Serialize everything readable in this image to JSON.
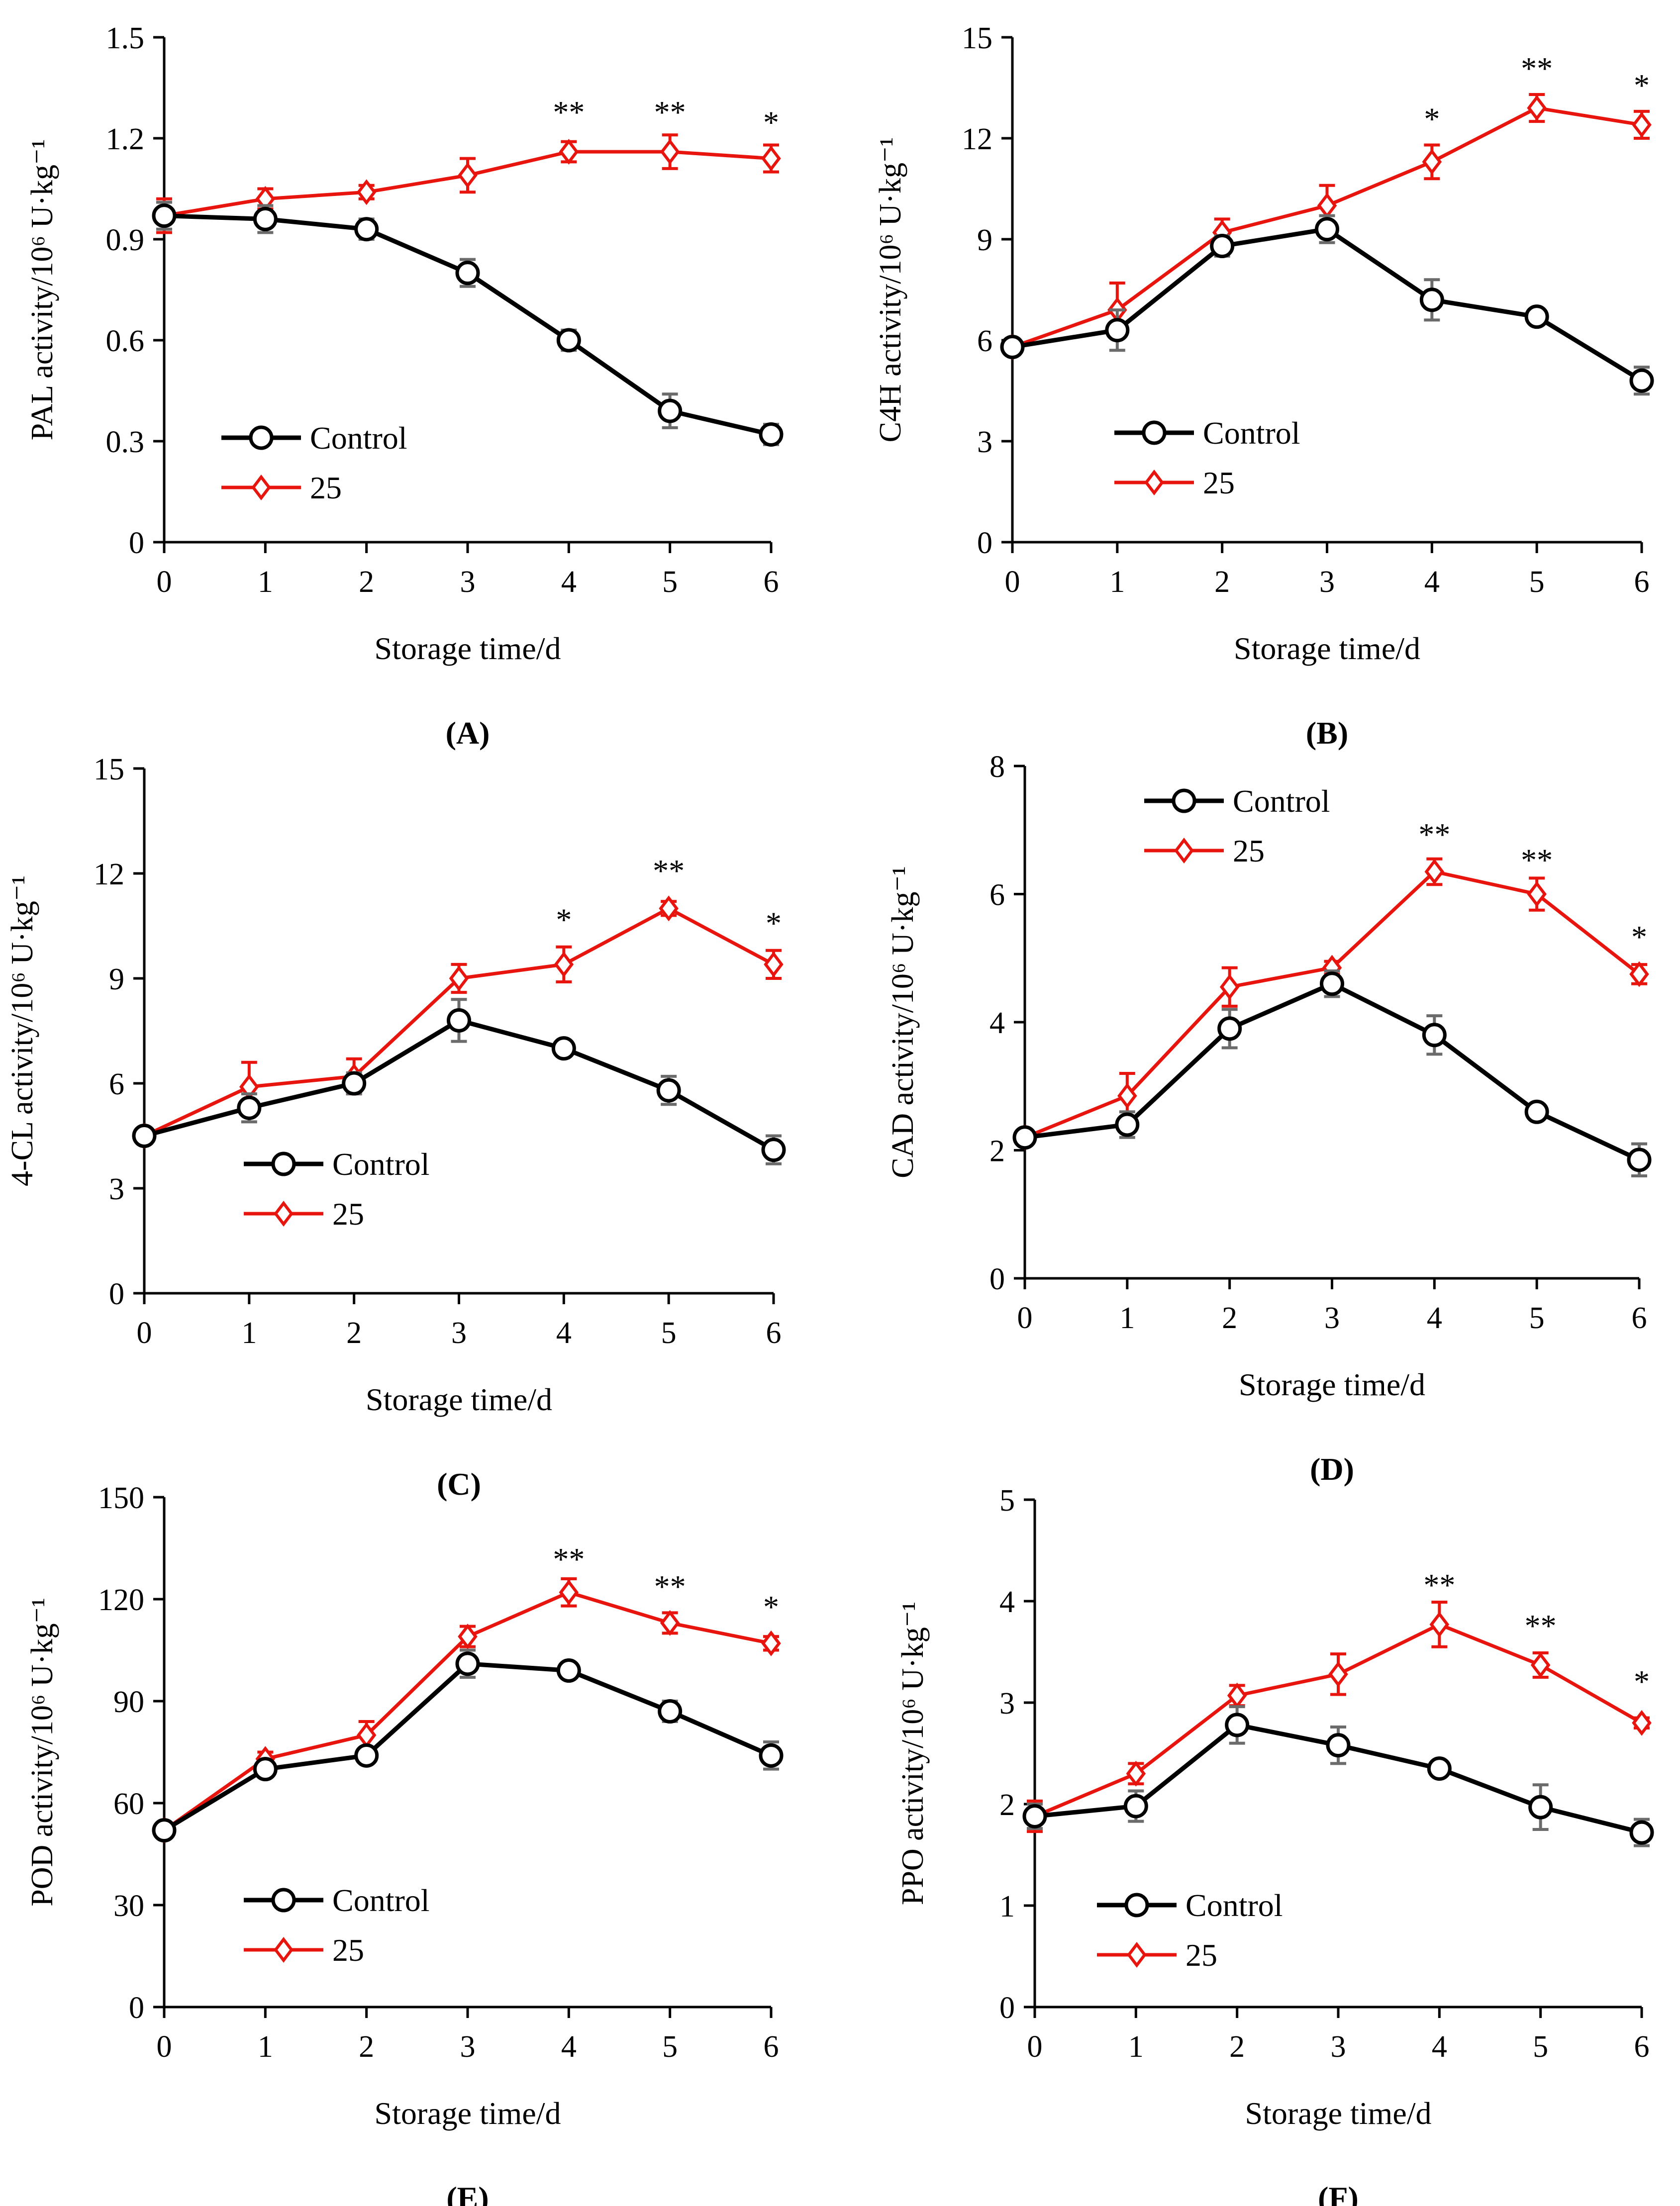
{
  "figure": {
    "series_names": [
      "Control",
      "25"
    ],
    "colors": {
      "control": "#000000",
      "treatment": "#e8140e",
      "errorbar": "#6b6b6b"
    }
  },
  "chart_data": [
    {
      "panel": "A",
      "panel_label": "(A)",
      "type": "line",
      "title": "",
      "xlabel": "Storage time/d",
      "ylabel": "PAL activity/10⁶ U·kg⁻¹",
      "ylim": [
        0,
        1.5
      ],
      "yticks": [
        0,
        0.3,
        0.6,
        0.9,
        1.2,
        1.5
      ],
      "ytick_labels": [
        "0",
        "0.3",
        "0.6",
        "0.9",
        "1.2",
        "1.5"
      ],
      "x": [
        0,
        1,
        2,
        3,
        4,
        5,
        6
      ],
      "xtick_labels": [
        "0",
        "1",
        "2",
        "3",
        "4",
        "5",
        "6"
      ],
      "legend_position": "bottom-left",
      "series": [
        {
          "name": "Control",
          "marker": "circle",
          "values": [
            0.97,
            0.96,
            0.93,
            0.8,
            0.6,
            0.39,
            0.32
          ],
          "errors": [
            0.04,
            0.04,
            0.03,
            0.04,
            0.03,
            0.05,
            0.03
          ]
        },
        {
          "name": "25",
          "marker": "diamond",
          "values": [
            0.97,
            1.02,
            1.04,
            1.09,
            1.16,
            1.16,
            1.14
          ],
          "errors": [
            0.05,
            0.03,
            0.02,
            0.05,
            0.03,
            0.05,
            0.04
          ]
        }
      ],
      "significance": [
        {
          "x": 4,
          "label": "**",
          "value": 1.29
        },
        {
          "x": 5,
          "label": "**",
          "value": 1.29
        },
        {
          "x": 6,
          "label": "*",
          "value": 1.26
        }
      ]
    },
    {
      "panel": "B",
      "panel_label": "(B)",
      "type": "line",
      "title": "",
      "xlabel": "Storage time/d",
      "ylabel": "C4H activity/10⁶ U·kg⁻¹",
      "ylim": [
        0,
        15
      ],
      "yticks": [
        0,
        3,
        6,
        9,
        12,
        15
      ],
      "ytick_labels": [
        "0",
        "3",
        "6",
        "9",
        "12",
        "15"
      ],
      "x": [
        0,
        1,
        2,
        3,
        4,
        5,
        6
      ],
      "xtick_labels": [
        "0",
        "1",
        "2",
        "3",
        "4",
        "5",
        "6"
      ],
      "legend_position": "bottom-center",
      "series": [
        {
          "name": "Control",
          "marker": "circle",
          "values": [
            5.8,
            6.3,
            8.8,
            9.3,
            7.2,
            6.7,
            4.8
          ],
          "errors": [
            0.2,
            0.6,
            0.3,
            0.4,
            0.6,
            0.2,
            0.4
          ]
        },
        {
          "name": "25",
          "marker": "diamond",
          "values": [
            5.8,
            6.9,
            9.2,
            10.0,
            11.3,
            12.9,
            12.4
          ],
          "errors": [
            0.2,
            0.8,
            0.4,
            0.6,
            0.5,
            0.4,
            0.4
          ]
        }
      ],
      "significance": [
        {
          "x": 4,
          "label": "*",
          "value": 12.7
        },
        {
          "x": 5,
          "label": "**",
          "value": 14.2
        },
        {
          "x": 6,
          "label": "*",
          "value": 13.7
        }
      ]
    },
    {
      "panel": "C",
      "panel_label": "(C)",
      "type": "line",
      "title": "",
      "xlabel": "Storage time/d",
      "ylabel": "4-CL activity/10⁶ U·kg⁻¹",
      "ylim": [
        0,
        15
      ],
      "yticks": [
        0,
        3,
        6,
        9,
        12,
        15
      ],
      "ytick_labels": [
        "0",
        "3",
        "6",
        "9",
        "12",
        "15"
      ],
      "x": [
        0,
        1,
        2,
        3,
        4,
        5,
        6
      ],
      "xtick_labels": [
        "0",
        "1",
        "2",
        "3",
        "4",
        "5",
        "6"
      ],
      "legend_position": "bottom-center",
      "series": [
        {
          "name": "Control",
          "marker": "circle",
          "values": [
            4.5,
            5.3,
            6.0,
            7.8,
            7.0,
            5.8,
            4.1
          ],
          "errors": [
            0.2,
            0.4,
            0.3,
            0.6,
            0.2,
            0.4,
            0.4
          ]
        },
        {
          "name": "25",
          "marker": "diamond",
          "values": [
            4.5,
            5.9,
            6.2,
            9.0,
            9.4,
            11.0,
            9.4
          ],
          "errors": [
            0.2,
            0.7,
            0.5,
            0.4,
            0.5,
            0.2,
            0.4
          ]
        }
      ],
      "significance": [
        {
          "x": 4,
          "label": "*",
          "value": 10.8
        },
        {
          "x": 5,
          "label": "**",
          "value": 12.2
        },
        {
          "x": 6,
          "label": "*",
          "value": 10.7
        }
      ]
    },
    {
      "panel": "D",
      "panel_label": "(D)",
      "type": "line",
      "title": "",
      "xlabel": "Storage time/d",
      "ylabel": "CAD activity/10⁶ U·kg⁻¹",
      "ylim": [
        0,
        8
      ],
      "yticks": [
        0,
        2,
        4,
        6,
        8
      ],
      "ytick_labels": [
        "0",
        "2",
        "4",
        "6",
        "8"
      ],
      "x": [
        0,
        1,
        2,
        3,
        4,
        5,
        6
      ],
      "xtick_labels": [
        "0",
        "1",
        "2",
        "3",
        "4",
        "5",
        "6"
      ],
      "legend_position": "top-left",
      "series": [
        {
          "name": "Control",
          "marker": "circle",
          "values": [
            2.2,
            2.4,
            3.9,
            4.6,
            3.8,
            2.6,
            1.85
          ],
          "errors": [
            0.1,
            0.2,
            0.3,
            0.2,
            0.3,
            0.1,
            0.25
          ]
        },
        {
          "name": "25",
          "marker": "diamond",
          "values": [
            2.2,
            2.85,
            4.55,
            4.85,
            6.35,
            6.0,
            4.75
          ],
          "errors": [
            0.1,
            0.35,
            0.3,
            0.1,
            0.2,
            0.25,
            0.15
          ]
        }
      ],
      "significance": [
        {
          "x": 4,
          "label": "**",
          "value": 7.0
        },
        {
          "x": 5,
          "label": "**",
          "value": 6.6
        },
        {
          "x": 6,
          "label": "*",
          "value": 5.4
        }
      ]
    },
    {
      "panel": "E",
      "panel_label": "(E)",
      "type": "line",
      "title": "",
      "xlabel": "Storage time/d",
      "ylabel": "POD activity/10⁶ U·kg⁻¹",
      "ylim": [
        0,
        150
      ],
      "yticks": [
        0,
        30,
        60,
        90,
        120,
        150
      ],
      "ytick_labels": [
        "0",
        "30",
        "60",
        "90",
        "120",
        "150"
      ],
      "x": [
        0,
        1,
        2,
        3,
        4,
        5,
        6
      ],
      "xtick_labels": [
        "0",
        "1",
        "2",
        "3",
        "4",
        "5",
        "6"
      ],
      "legend_position": "bottom-center",
      "series": [
        {
          "name": "Control",
          "marker": "circle",
          "values": [
            52,
            70,
            74,
            101,
            99,
            87,
            74
          ],
          "errors": [
            2,
            2,
            2,
            4,
            2,
            3,
            4
          ]
        },
        {
          "name": "25",
          "marker": "diamond",
          "values": [
            52,
            73,
            80,
            109,
            122,
            113,
            107
          ],
          "errors": [
            2,
            2,
            4,
            3,
            4,
            3,
            2
          ]
        }
      ],
      "significance": [
        {
          "x": 4,
          "label": "**",
          "value": 133
        },
        {
          "x": 5,
          "label": "**",
          "value": 125
        },
        {
          "x": 6,
          "label": "*",
          "value": 119
        }
      ]
    },
    {
      "panel": "F",
      "panel_label": "(F)",
      "type": "line",
      "title": "",
      "xlabel": "Storage time/d",
      "ylabel": "PPO activity/10⁶ U·kg⁻¹",
      "ylim": [
        0,
        5
      ],
      "yticks": [
        0,
        1,
        2,
        3,
        4,
        5
      ],
      "ytick_labels": [
        "0",
        "1",
        "2",
        "3",
        "4",
        "5"
      ],
      "x": [
        0,
        1,
        2,
        3,
        4,
        5,
        6
      ],
      "xtick_labels": [
        "0",
        "1",
        "2",
        "3",
        "4",
        "5",
        "6"
      ],
      "legend_position": "bottom-center",
      "series": [
        {
          "name": "Control",
          "marker": "circle",
          "values": [
            1.88,
            1.98,
            2.78,
            2.58,
            2.35,
            1.97,
            1.72
          ],
          "errors": [
            0.12,
            0.15,
            0.18,
            0.18,
            0.05,
            0.22,
            0.13
          ]
        },
        {
          "name": "25",
          "marker": "diamond",
          "values": [
            1.88,
            2.3,
            3.07,
            3.28,
            3.77,
            3.37,
            2.8
          ],
          "errors": [
            0.15,
            0.1,
            0.1,
            0.2,
            0.22,
            0.12,
            0.05
          ]
        }
      ],
      "significance": [
        {
          "x": 4,
          "label": "**",
          "value": 4.2
        },
        {
          "x": 5,
          "label": "**",
          "value": 3.8
        },
        {
          "x": 6,
          "label": "*",
          "value": 3.25
        }
      ]
    }
  ]
}
